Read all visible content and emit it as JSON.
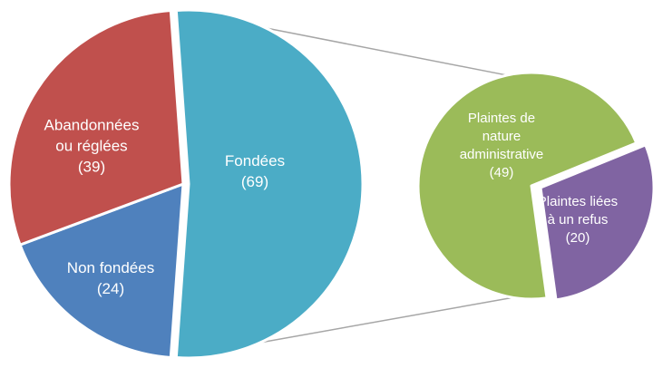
{
  "chart_data": {
    "type": "pie",
    "subtype": "pie-of-pie",
    "main_pie": {
      "slices": [
        {
          "label_lines": [
            "Fondées"
          ],
          "value_text": "(69)",
          "value": 69,
          "color": "#4BACC6",
          "exploded": true
        },
        {
          "label_lines": [
            "Non fondées"
          ],
          "value_text": "(24)",
          "value": 24,
          "color": "#4F81BD"
        },
        {
          "label_lines": [
            "Abandonnées",
            "ou réglées"
          ],
          "value_text": "(39)",
          "value": 39,
          "color": "#C0504D"
        }
      ]
    },
    "secondary_pie": {
      "breakdown_of": "Fondées",
      "slices": [
        {
          "label_lines": [
            "Plaintes de",
            "nature",
            "administrative"
          ],
          "value_text": "(49)",
          "value": 49,
          "color": "#9BBB59"
        },
        {
          "label_lines": [
            "Plaintes liées",
            "à un refus"
          ],
          "value_text": "(20)",
          "value": 20,
          "color": "#8064A2"
        }
      ]
    },
    "connector_color": "#A6A6A6",
    "legend": "none"
  }
}
